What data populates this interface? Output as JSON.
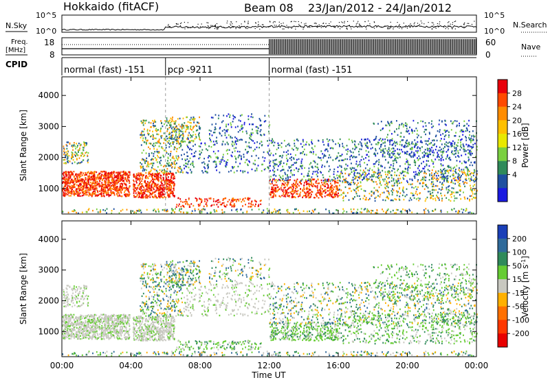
{
  "header": {
    "station": "Hokkaido (fitACF)",
    "beam": "Beam 08",
    "date_range": "23/Jan/2012 - 24/Jan/2012"
  },
  "nsky_panel": {
    "left_label": "N.Sky",
    "right_label": "N.Search",
    "tick_top_left": "10^5",
    "tick_bottom_left": "10^0",
    "tick_top_right": "10^5",
    "tick_bottom_right": "10^0"
  },
  "freq_panel": {
    "label_line1": "Freq.",
    "label_line2": "[MHz]",
    "tick_top_left": "18",
    "tick_bottom_left": "8",
    "right_label": "Nave",
    "tick_top_right": "60",
    "tick_bottom_right": "0"
  },
  "cpid_panel": {
    "label": "CPID",
    "modes": [
      {
        "name": "normal (fast) -151",
        "start_h": 0,
        "end_h": 6
      },
      {
        "name": "pcp -9211",
        "start_h": 6,
        "end_h": 12
      },
      {
        "name": "normal (fast) -151",
        "start_h": 12,
        "end_h": 24
      }
    ]
  },
  "power_panel": {
    "ylabel": "Slant Range [km]",
    "colorbar_label": "Power [dB]",
    "colorbar_ticks": [
      "28",
      "24",
      "20",
      "16",
      "12",
      "8",
      "4"
    ],
    "colorbar_colors": [
      "#e8000b",
      "#ff4a00",
      "#ff8c00",
      "#ffc000",
      "#e8e800",
      "#7ad040",
      "#2f8a5a",
      "#1e4fa0",
      "#1a1ae0"
    ]
  },
  "velocity_panel": {
    "ylabel": "Slant Range [km]",
    "colorbar_label": "Velocity [m s^-1]",
    "colorbar_ticks": [
      "200",
      "100",
      "50",
      "15",
      "-15",
      "-50",
      "-100",
      "-200"
    ],
    "colorbar_colors": [
      "#1a3fb8",
      "#2f6a9a",
      "#2f8a5a",
      "#66cc33",
      "#c8c8c0",
      "#ffb000",
      "#ff7000",
      "#ff3800",
      "#e80000"
    ]
  },
  "x_axis": {
    "label": "Time UT",
    "ticks": [
      "00:00",
      "04:00",
      "08:00",
      "12:00",
      "16:00",
      "20:00",
      "00:00"
    ]
  },
  "chart_data": {
    "type": "heatmap",
    "title": "Hokkaido (fitACF) Beam 08 23/Jan/2012 - 24/Jan/2012",
    "x_label": "Time UT",
    "y_label": "Slant Range [km]",
    "xlim_hours": [
      0,
      24
    ],
    "ylim_km": [
      180,
      4600
    ],
    "y_ticks": [
      1000,
      2000,
      3000,
      4000
    ],
    "x_ticks_hours": [
      0,
      4,
      8,
      12,
      16,
      20,
      24
    ],
    "mode_boundaries_hours": [
      6,
      12
    ],
    "panels": [
      {
        "name": "Power",
        "unit": "dB",
        "range": [
          0,
          30
        ]
      },
      {
        "name": "Velocity",
        "unit": "m s^-1",
        "range": [
          -200,
          200
        ]
      }
    ]
  }
}
